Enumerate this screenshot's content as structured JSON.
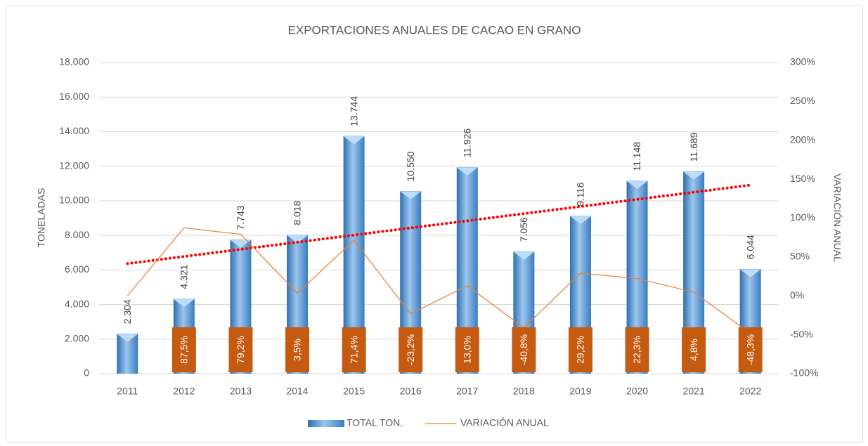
{
  "chart_data": {
    "type": "bar",
    "title": "EXPORTACIONES ANUALES DE CACAO EN GRANO",
    "ylabel": "TONELADAS",
    "y2label": "VARIACIÓN ANUAL",
    "categories": [
      "2011",
      "2012",
      "2013",
      "2014",
      "2015",
      "2016",
      "2017",
      "2018",
      "2019",
      "2020",
      "2021",
      "2022"
    ],
    "series": [
      {
        "name": "TOTAL TON.",
        "type": "bar",
        "color": "#5b9bd5",
        "values": [
          2304,
          4321,
          7743,
          8018,
          13744,
          10550,
          11926,
          7056,
          9116,
          11148,
          11689,
          6044
        ],
        "value_labels": [
          "2.304",
          "4.321",
          "7.743",
          "8.018",
          "13.744",
          "10.550",
          "11.926",
          "7.056",
          "9.116",
          "11.148",
          "11.689",
          "6.044"
        ]
      },
      {
        "name": "VARIACIÓN ANUAL",
        "type": "line",
        "axis": "y2",
        "color": "#ed7d31",
        "label_color": "#c55a11",
        "values": [
          0,
          87.5,
          79.2,
          3.5,
          71.4,
          -23.2,
          13.0,
          -40.8,
          29.2,
          22.3,
          4.8,
          -48.3
        ],
        "value_labels": [
          null,
          "87,5%",
          "79,2%",
          "3,5%",
          "71,4%",
          "-23,2%",
          "13,0%",
          "-40,8%",
          "29,2%",
          "22,3%",
          "4,8%",
          "-48,3%"
        ]
      }
    ],
    "trendline": {
      "series": 0,
      "color": "#ff0000"
    },
    "ylim": [
      0,
      18000
    ],
    "yticks": [
      0,
      {
        "value": 2000,
        "label": "2.000"
      },
      {
        "value": 4000,
        "label": "4.000"
      },
      {
        "value": 6000,
        "label": "6.000"
      },
      {
        "value": 8000,
        "label": "8.000"
      },
      {
        "value": 10000,
        "label": "10.000"
      },
      {
        "value": 12000,
        "label": "12.000"
      },
      {
        "value": 14000,
        "label": "14.000"
      },
      {
        "value": 16000,
        "label": "16.000"
      },
      {
        "value": 18000,
        "label": "18.000"
      }
    ],
    "y2lim": [
      -100,
      300
    ],
    "y2ticks": [
      {
        "value": -100,
        "label": "-100%"
      },
      {
        "value": -50,
        "label": "-50%"
      },
      {
        "value": 0,
        "label": "0%"
      },
      {
        "value": 50,
        "label": "50%"
      },
      {
        "value": 100,
        "label": "100%"
      },
      {
        "value": 150,
        "label": "150%"
      },
      {
        "value": 200,
        "label": "200%"
      },
      {
        "value": 250,
        "label": "250%"
      },
      {
        "value": 300,
        "label": "300%"
      }
    ],
    "grid": true,
    "legend": "bottom"
  }
}
